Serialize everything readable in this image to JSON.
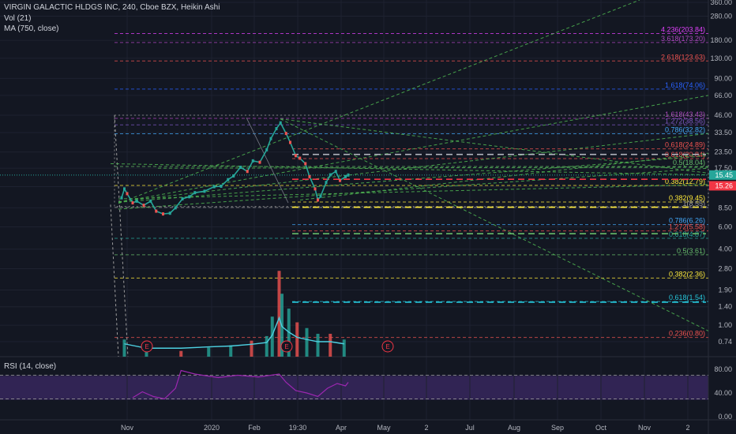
{
  "header": {
    "symbol": "VIRGIN GALACTIC HLDGS INC, 240, Cboe BZX, Heikin Ashi",
    "volume": "Vol (21)",
    "ma": "MA (750, close)",
    "rsi": "RSI (14, close)"
  },
  "price_axis": {
    "ticks": [
      "360.00",
      "280.00",
      "180.00",
      "130.00",
      "90.00",
      "66.00",
      "46.00",
      "33.50",
      "23.50",
      "17.50",
      "12.50",
      "8.50",
      "6.00",
      "4.00",
      "2.80",
      "1.90",
      "1.40",
      "1.00",
      "0.74"
    ],
    "last_price": "15.45",
    "last_price_color": "#26a69a",
    "ma_price": "15.26",
    "ma_price_color": "#f23645"
  },
  "rsi_axis": {
    "ticks": [
      "80.00",
      "40.00",
      "0.00"
    ]
  },
  "time_axis": {
    "ticks": [
      "Nov",
      "2020",
      "Feb",
      "19:30",
      "Apr",
      "May",
      "2",
      "Jul",
      "Aug",
      "Sep",
      "Oct",
      "Nov",
      "2"
    ]
  },
  "fib_labels": [
    {
      "text": "4.236(203.84)",
      "color": "#e040fb"
    },
    {
      "text": "3.618(173.20)",
      "color": "#ab47bc"
    },
    {
      "text": "2.618(123.63)",
      "color": "#ef5350"
    },
    {
      "text": "1.618(74.06)",
      "color": "#2962ff"
    },
    {
      "text": "1.618(43.43)",
      "color": "#ab47bc"
    },
    {
      "text": "1.272(38.56)",
      "color": "#7e57c2"
    },
    {
      "text": "0.786(32.82)",
      "color": "#42a5f5"
    },
    {
      "text": "0.618(24.89)",
      "color": "#ef5350"
    },
    {
      "text": "0.618(20.84)",
      "color": "#ef5350"
    },
    {
      "text": "0.5(18.04)",
      "color": "#66bb6a"
    },
    {
      "text": "0.382(12.79)",
      "color": "#ffeb3b"
    },
    {
      "text": "0.382(9.45)",
      "color": "#ffeb3b"
    },
    {
      "text": "1(8.55)",
      "color": "#9e9e9e"
    },
    {
      "text": "0.786(6.26)",
      "color": "#42a5f5"
    },
    {
      "text": "1.272(5.58)",
      "color": "#ef5350"
    },
    {
      "text": "0.618(4.87)",
      "color": "#26a69a"
    },
    {
      "text": "0.5(3.61)",
      "color": "#66bb6a"
    },
    {
      "text": "0.382(2.36)",
      "color": "#ffeb3b"
    },
    {
      "text": "0.618(1.54)",
      "color": "#26c6da"
    },
    {
      "text": "0.236(0.80)",
      "color": "#ef5350"
    }
  ],
  "earnings_markers": [
    "E",
    "E",
    "E"
  ],
  "chart_data": {
    "type": "line",
    "title": "VIRGIN GALACTIC HLDGS INC, 240, Cboe BZX, Heikin Ashi",
    "price_scale": "log",
    "price_range": [
      0.7,
      380
    ],
    "grid": true,
    "price_series": [
      {
        "date": "2019-10-28",
        "price": 10.2
      },
      {
        "date": "2019-10-30",
        "price": 12.0
      },
      {
        "date": "2019-11-01",
        "price": 11.0
      },
      {
        "date": "2019-11-05",
        "price": 9.3
      },
      {
        "date": "2019-11-08",
        "price": 9.6
      },
      {
        "date": "2019-11-13",
        "price": 8.9
      },
      {
        "date": "2019-11-18",
        "price": 9.6
      },
      {
        "date": "2019-11-22",
        "price": 8.0
      },
      {
        "date": "2019-11-27",
        "price": 7.6
      },
      {
        "date": "2019-12-02",
        "price": 7.7
      },
      {
        "date": "2019-12-06",
        "price": 8.5
      },
      {
        "date": "2019-12-11",
        "price": 10.0
      },
      {
        "date": "2019-12-16",
        "price": 10.4
      },
      {
        "date": "2019-12-20",
        "price": 11.2
      },
      {
        "date": "2019-12-27",
        "price": 11.5
      },
      {
        "date": "2020-01-03",
        "price": 12.5
      },
      {
        "date": "2020-01-08",
        "price": 12.6
      },
      {
        "date": "2020-01-13",
        "price": 14.2
      },
      {
        "date": "2020-01-17",
        "price": 15.2
      },
      {
        "date": "2020-01-22",
        "price": 17.8
      },
      {
        "date": "2020-01-27",
        "price": 16.5
      },
      {
        "date": "2020-01-31",
        "price": 20.0
      },
      {
        "date": "2020-02-05",
        "price": 19.5
      },
      {
        "date": "2020-02-10",
        "price": 24.5
      },
      {
        "date": "2020-02-13",
        "price": 30.0
      },
      {
        "date": "2020-02-17",
        "price": 36.0
      },
      {
        "date": "2020-02-20",
        "price": 40.0
      },
      {
        "date": "2020-02-24",
        "price": 33.0
      },
      {
        "date": "2020-02-27",
        "price": 28.0
      },
      {
        "date": "2020-03-02",
        "price": 22.0
      },
      {
        "date": "2020-03-05",
        "price": 21.0
      },
      {
        "date": "2020-03-09",
        "price": 19.0
      },
      {
        "date": "2020-03-12",
        "price": 15.0
      },
      {
        "date": "2020-03-16",
        "price": 12.0
      },
      {
        "date": "2020-03-18",
        "price": 9.8
      },
      {
        "date": "2020-03-20",
        "price": 10.5
      },
      {
        "date": "2020-03-24",
        "price": 13.5
      },
      {
        "date": "2020-03-27",
        "price": 15.5
      },
      {
        "date": "2020-03-31",
        "price": 16.5
      },
      {
        "date": "2020-04-03",
        "price": 14.0
      },
      {
        "date": "2020-04-07",
        "price": 15.0
      },
      {
        "date": "2020-04-09",
        "price": 15.45
      }
    ],
    "volume_series": [
      {
        "date": "2019-10-30",
        "volume": 0.15
      },
      {
        "date": "2019-11-15",
        "volume": 0.05
      },
      {
        "date": "2019-12-10",
        "volume": 0.05
      },
      {
        "date": "2019-12-30",
        "volume": 0.08
      },
      {
        "date": "2020-01-15",
        "volume": 0.1
      },
      {
        "date": "2020-01-30",
        "volume": 0.14
      },
      {
        "date": "2020-02-10",
        "volume": 0.18
      },
      {
        "date": "2020-02-14",
        "volume": 0.35
      },
      {
        "date": "2020-02-19",
        "volume": 0.75
      },
      {
        "date": "2020-02-21",
        "volume": 0.55
      },
      {
        "date": "2020-02-26",
        "volume": 0.42
      },
      {
        "date": "2020-03-03",
        "volume": 0.3
      },
      {
        "date": "2020-03-10",
        "volume": 0.25
      },
      {
        "date": "2020-03-18",
        "volume": 0.2
      },
      {
        "date": "2020-03-27",
        "volume": 0.2
      },
      {
        "date": "2020-04-06",
        "volume": 0.15
      }
    ],
    "rsi_series": [
      {
        "date": "2019-11-05",
        "rsi": 32
      },
      {
        "date": "2019-11-12",
        "rsi": 42
      },
      {
        "date": "2019-11-20",
        "rsi": 34
      },
      {
        "date": "2019-11-28",
        "rsi": 30
      },
      {
        "date": "2019-12-06",
        "rsi": 48
      },
      {
        "date": "2019-12-10",
        "rsi": 78
      },
      {
        "date": "2019-12-20",
        "rsi": 72
      },
      {
        "date": "2020-01-06",
        "rsi": 66
      },
      {
        "date": "2020-01-20",
        "rsi": 70
      },
      {
        "date": "2020-02-04",
        "rsi": 67
      },
      {
        "date": "2020-02-19",
        "rsi": 72
      },
      {
        "date": "2020-02-24",
        "rsi": 58
      },
      {
        "date": "2020-03-02",
        "rsi": 44
      },
      {
        "date": "2020-03-10",
        "rsi": 40
      },
      {
        "date": "2020-03-18",
        "rsi": 34
      },
      {
        "date": "2020-03-25",
        "rsi": 48
      },
      {
        "date": "2020-04-01",
        "rsi": 56
      },
      {
        "date": "2020-04-07",
        "rsi": 52
      },
      {
        "date": "2020-04-09",
        "rsi": 58
      }
    ],
    "rsi_levels": [
      70,
      30
    ]
  }
}
